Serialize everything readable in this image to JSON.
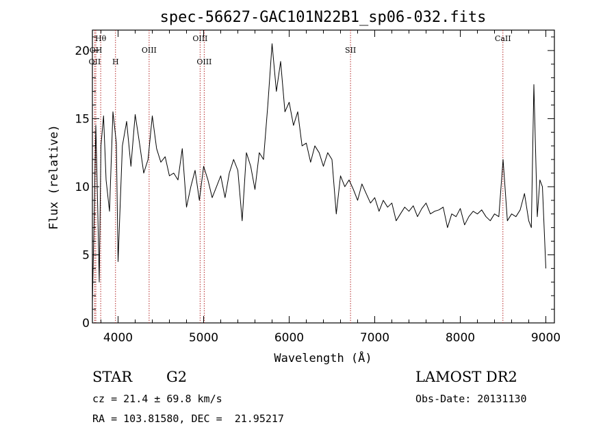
{
  "chart_data": {
    "type": "line",
    "title": "spec-56627-GAC101N22B1_sp06-032.fits",
    "xlabel": "Wavelength (Å)",
    "ylabel": "Flux (relative)",
    "xlim": [
      3700,
      9100
    ],
    "ylim": [
      0,
      21.5
    ],
    "xticks": [
      4000,
      5000,
      6000,
      7000,
      8000,
      9000
    ],
    "yticks": [
      0,
      5,
      10,
      15,
      20
    ],
    "grid": false,
    "series": [
      {
        "x": [
          3700,
          3720,
          3740,
          3760,
          3780,
          3800,
          3830,
          3860,
          3900,
          3940,
          3980,
          4000,
          4050,
          4100,
          4150,
          4200,
          4250,
          4300,
          4350,
          4400,
          4450,
          4500,
          4550,
          4600,
          4650,
          4700,
          4750,
          4800,
          4850,
          4900,
          4950,
          5000,
          5050,
          5100,
          5150,
          5200,
          5250,
          5300,
          5350,
          5400,
          5450,
          5500,
          5550,
          5600,
          5650,
          5700,
          5750,
          5800,
          5850,
          5900,
          5950,
          6000,
          6050,
          6100,
          6150,
          6200,
          6250,
          6300,
          6350,
          6400,
          6450,
          6500,
          6550,
          6600,
          6650,
          6700,
          6750,
          6800,
          6850,
          6900,
          6950,
          7000,
          7050,
          7100,
          7150,
          7200,
          7250,
          7300,
          7350,
          7400,
          7450,
          7500,
          7550,
          7600,
          7650,
          7700,
          7750,
          7800,
          7850,
          7900,
          7950,
          8000,
          8050,
          8100,
          8150,
          8200,
          8250,
          8300,
          8350,
          8400,
          8450,
          8500,
          8550,
          8600,
          8650,
          8700,
          8750,
          8800,
          8830,
          8860,
          8900,
          8930,
          8960,
          9000
        ],
        "y": [
          1.5,
          7.5,
          14.5,
          9.0,
          3.0,
          13.0,
          15.2,
          10.5,
          8.2,
          15.5,
          13.2,
          4.5,
          13.0,
          14.8,
          11.5,
          15.3,
          13.2,
          11.0,
          12.0,
          15.2,
          12.8,
          11.8,
          12.2,
          10.8,
          11.0,
          10.5,
          12.8,
          8.5,
          10.0,
          11.2,
          9.0,
          11.5,
          10.5,
          9.2,
          10.0,
          10.8,
          9.2,
          11.0,
          12.0,
          11.2,
          7.5,
          12.5,
          11.5,
          9.8,
          12.5,
          12.0,
          16.0,
          20.5,
          17.0,
          19.2,
          15.5,
          16.2,
          14.5,
          15.5,
          13.0,
          13.2,
          11.8,
          13.0,
          12.5,
          11.5,
          12.5,
          12.0,
          8.0,
          10.8,
          10.0,
          10.5,
          9.8,
          9.0,
          10.2,
          9.5,
          8.8,
          9.2,
          8.2,
          9.0,
          8.5,
          8.8,
          7.5,
          8.0,
          8.5,
          8.2,
          8.6,
          7.8,
          8.4,
          8.8,
          8.0,
          8.2,
          8.3,
          8.5,
          7.0,
          8.0,
          7.8,
          8.4,
          7.2,
          7.8,
          8.2,
          8.0,
          8.3,
          7.8,
          7.5,
          8.0,
          7.8,
          12.0,
          7.5,
          8.0,
          7.8,
          8.3,
          9.5,
          7.5,
          7.0,
          17.5,
          7.8,
          10.5,
          10.0,
          4.0
        ]
      }
    ]
  },
  "line_markers": [
    {
      "label": "Hθ",
      "x": 3797,
      "row": 0
    },
    {
      "label": "OII",
      "x": 3727,
      "row": 2
    },
    {
      "label": "OH",
      "x": 3740,
      "row": 1
    },
    {
      "label": "H",
      "x": 3970,
      "row": 2
    },
    {
      "label": "OIII",
      "x": 4363,
      "row": 1
    },
    {
      "label": "OIII",
      "x": 4959,
      "row": 0
    },
    {
      "label": "OIII",
      "x": 5007,
      "row": 2
    },
    {
      "label": "SII",
      "x": 6717,
      "row": 1
    },
    {
      "label": "CaII",
      "x": 8498,
      "row": 0
    }
  ],
  "info": {
    "obj_class": "STAR",
    "subclass": "G2",
    "survey": "LAMOST DR2",
    "cz": "cz = 21.4 ± 69.8 km/s",
    "obs_date": "Obs-Date: 20131130",
    "coords": "RA = 103.81580, DEC =  21.95217"
  },
  "colors": {
    "axis": "#000000",
    "spectrum": "#000000",
    "marker_line": "#b22222"
  }
}
